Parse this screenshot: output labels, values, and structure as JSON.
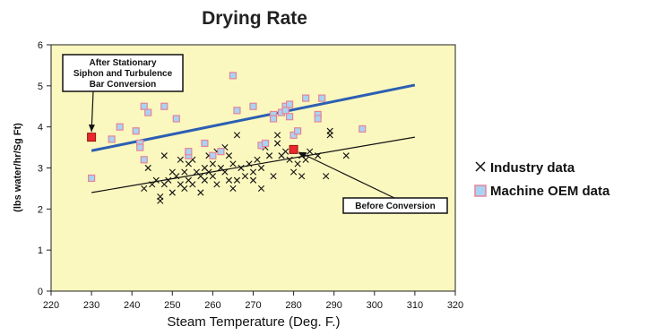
{
  "chart_data": {
    "type": "scatter",
    "title": "Drying Rate",
    "xlabel": "Steam Temperature (Deg. F.)",
    "ylabel": "(lbs water/hr/Sg Ft)",
    "xlim": [
      220,
      320
    ],
    "ylim": [
      0,
      6
    ],
    "x_ticks": [
      "220",
      "230",
      "240",
      "250",
      "260",
      "270",
      "280",
      "290",
      "300",
      "310",
      "320"
    ],
    "y_ticks": [
      "0",
      "1",
      "2",
      "3",
      "4",
      "5",
      "6"
    ],
    "grid": false,
    "legend_position": "right",
    "colors": {
      "plot_background": "#fbf8bf",
      "oem_fill": "#a9d3f2",
      "oem_edge": "#e6849a",
      "conversion_marker": "#e8282a",
      "oem_trend": "#2c5fb3",
      "industry_trend": "#111111"
    },
    "series": [
      {
        "name": "Industry data",
        "marker": "x",
        "points": [
          [
            243,
            2.5
          ],
          [
            244,
            3.0
          ],
          [
            245,
            2.6
          ],
          [
            246,
            2.7
          ],
          [
            247,
            2.3
          ],
          [
            247,
            2.2
          ],
          [
            248,
            2.6
          ],
          [
            248,
            3.3
          ],
          [
            249,
            2.7
          ],
          [
            250,
            2.9
          ],
          [
            250,
            2.4
          ],
          [
            251,
            2.8
          ],
          [
            252,
            3.2
          ],
          [
            252,
            2.6
          ],
          [
            253,
            2.9
          ],
          [
            253,
            2.5
          ],
          [
            254,
            2.7
          ],
          [
            254,
            3.1
          ],
          [
            255,
            2.6
          ],
          [
            255,
            3.2
          ],
          [
            256,
            2.9
          ],
          [
            257,
            2.8
          ],
          [
            257,
            2.4
          ],
          [
            258,
            3.0
          ],
          [
            258,
            2.7
          ],
          [
            259,
            3.3
          ],
          [
            259,
            2.9
          ],
          [
            260,
            3.1
          ],
          [
            260,
            2.8
          ],
          [
            261,
            3.4
          ],
          [
            261,
            2.6
          ],
          [
            262,
            3.0
          ],
          [
            263,
            3.5
          ],
          [
            263,
            2.9
          ],
          [
            264,
            3.3
          ],
          [
            264,
            2.7
          ],
          [
            265,
            3.1
          ],
          [
            265,
            2.5
          ],
          [
            266,
            3.8
          ],
          [
            266,
            2.7
          ],
          [
            267,
            3.0
          ],
          [
            268,
            2.8
          ],
          [
            269,
            3.1
          ],
          [
            270,
            2.7
          ],
          [
            270,
            2.9
          ],
          [
            271,
            3.2
          ],
          [
            272,
            2.5
          ],
          [
            272,
            3.0
          ],
          [
            273,
            3.5
          ],
          [
            274,
            3.3
          ],
          [
            275,
            2.8
          ],
          [
            276,
            3.6
          ],
          [
            276,
            3.8
          ],
          [
            277,
            3.3
          ],
          [
            278,
            3.4
          ],
          [
            279,
            3.2
          ],
          [
            280,
            2.9
          ],
          [
            281,
            3.1
          ],
          [
            282,
            3.3
          ],
          [
            282,
            2.8
          ],
          [
            283,
            3.2
          ],
          [
            284,
            3.4
          ],
          [
            286,
            3.3
          ],
          [
            288,
            2.8
          ],
          [
            289,
            3.8
          ],
          [
            289,
            3.9
          ],
          [
            293,
            3.3
          ]
        ]
      },
      {
        "name": "Machine OEM data",
        "marker": "square",
        "points": [
          [
            230,
            2.75
          ],
          [
            235,
            3.7
          ],
          [
            237,
            4.0
          ],
          [
            241,
            3.9
          ],
          [
            242,
            3.6
          ],
          [
            242,
            3.5
          ],
          [
            243,
            3.2
          ],
          [
            243,
            4.5
          ],
          [
            244,
            4.35
          ],
          [
            248,
            4.5
          ],
          [
            251,
            4.2
          ],
          [
            254,
            3.3
          ],
          [
            254,
            3.4
          ],
          [
            258,
            3.6
          ],
          [
            260,
            3.3
          ],
          [
            262,
            3.4
          ],
          [
            265,
            5.25
          ],
          [
            266,
            4.4
          ],
          [
            270,
            4.5
          ],
          [
            272,
            3.55
          ],
          [
            273,
            3.6
          ],
          [
            275,
            4.3
          ],
          [
            275,
            4.2
          ],
          [
            277,
            4.35
          ],
          [
            278,
            4.5
          ],
          [
            278,
            4.4
          ],
          [
            279,
            4.25
          ],
          [
            279,
            4.55
          ],
          [
            280,
            3.8
          ],
          [
            281,
            3.9
          ],
          [
            283,
            4.7
          ],
          [
            286,
            4.3
          ],
          [
            286,
            4.2
          ],
          [
            287,
            4.7
          ],
          [
            297,
            3.95
          ]
        ]
      }
    ],
    "trend_lines": [
      {
        "series": "Machine OEM data",
        "from": [
          230,
          3.42
        ],
        "to": [
          310,
          5.02
        ]
      },
      {
        "series": "Industry data",
        "from": [
          230,
          2.4
        ],
        "to": [
          310,
          3.75
        ]
      }
    ],
    "highlighted_points": [
      {
        "x": 230,
        "y": 3.75,
        "label": "After Stationary Siphon and Turbulence Bar Conversion"
      },
      {
        "x": 280,
        "y": 3.45,
        "label": "Before Conversion"
      }
    ],
    "annotations": {
      "after_lines": [
        "After Stationary",
        "Siphon and Turbulence",
        "Bar Conversion"
      ],
      "before": "Before Conversion"
    }
  }
}
